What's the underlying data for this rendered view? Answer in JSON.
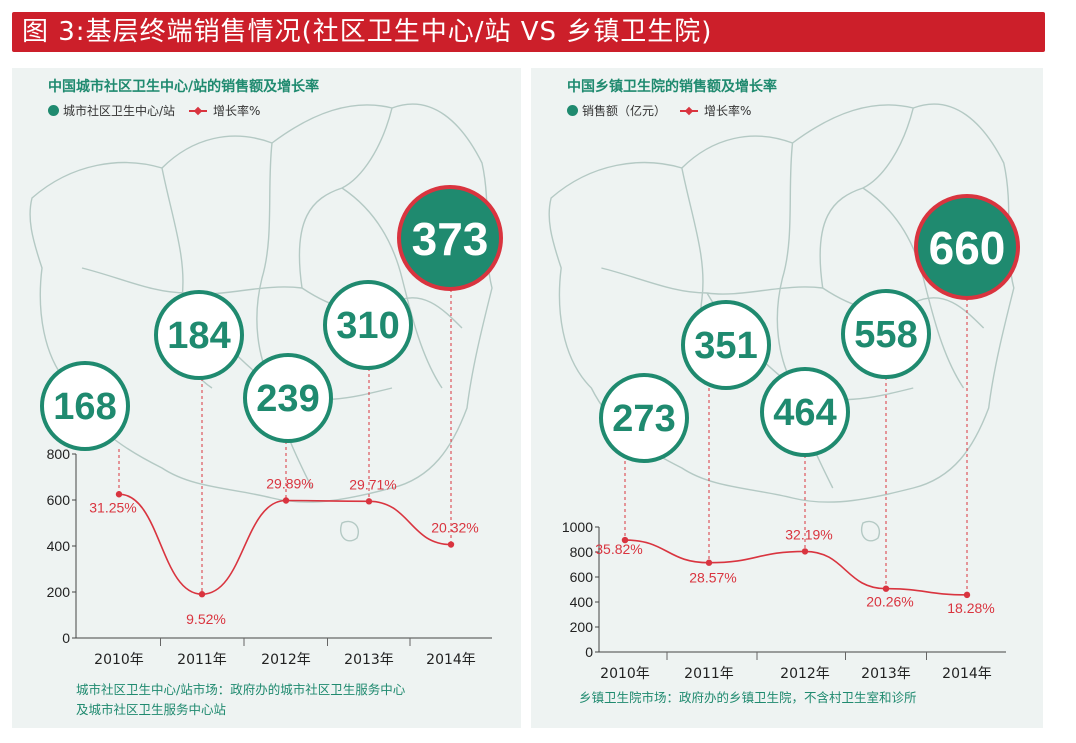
{
  "banner": {
    "title": "图 3:基层终端销售情况(社区卫生中心/站 VS 乡镇卫生院)"
  },
  "colors": {
    "accent": "#cc1f2a",
    "teal": "#1f8a6f",
    "line": "#d9343f"
  },
  "panels": [
    {
      "title": "中国城市社区卫生中心/站的销售额及增长率",
      "legend_bar": "城市社区卫生中心/站",
      "legend_line": "增长率%",
      "footnote": [
        "城市社区卫生中心/站市场：政府办的城市社区卫生服务中心",
        "及城市社区卫生服务中心站"
      ]
    },
    {
      "title": "中国乡镇卫生院的销售额及增长率",
      "legend_bar": "销售额（亿元）",
      "legend_line": "增长率%",
      "footnote": [
        "乡镇卫生院市场：政府办的乡镇卫生院，不含村卫生室和诊所"
      ]
    }
  ],
  "chart_data": [
    {
      "type": "line",
      "title": "中国城市社区卫生中心/站的销售额及增长率",
      "categories": [
        "2010年",
        "2011年",
        "2012年",
        "2013年",
        "2014年"
      ],
      "sales": [
        168,
        184,
        239,
        310,
        373
      ],
      "sales_labels": [
        "168",
        "184",
        "239",
        "310",
        "373"
      ],
      "series": [
        {
          "name": "增长率%",
          "values": [
            31.25,
            9.52,
            29.89,
            29.71,
            20.32
          ],
          "labels": [
            "31.25%",
            "9.52%",
            "29.89%",
            "29.71%",
            "20.32%"
          ]
        }
      ],
      "yticks": [
        "0",
        "200",
        "400",
        "600",
        "800"
      ],
      "ylim": [
        0,
        800
      ]
    },
    {
      "type": "line",
      "title": "中国乡镇卫生院的销售额及增长率",
      "categories": [
        "2010年",
        "2011年",
        "2012年",
        "2013年",
        "2014年"
      ],
      "sales": [
        273,
        351,
        464,
        558,
        660
      ],
      "sales_labels": [
        "273",
        "351",
        "464",
        "558",
        "660"
      ],
      "series": [
        {
          "name": "增长率%",
          "values": [
            35.82,
            28.57,
            32.19,
            20.26,
            18.28
          ],
          "labels": [
            "35.82%",
            "28.57%",
            "32.19%",
            "20.26%",
            "18.28%"
          ]
        }
      ],
      "yticks": [
        "0",
        "200",
        "400",
        "600",
        "800",
        "1000"
      ],
      "ylim": [
        0,
        1000
      ]
    }
  ]
}
